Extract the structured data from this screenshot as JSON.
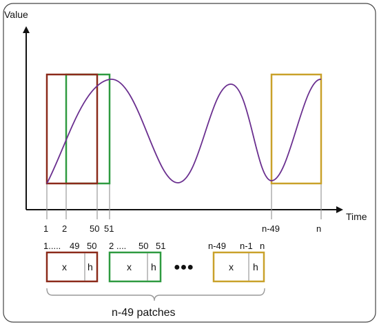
{
  "axes": {
    "y_label": "Value",
    "x_label": "Time"
  },
  "ticks": [
    "1",
    "2",
    "50",
    "51",
    "n-49",
    "n"
  ],
  "patches": [
    {
      "index_label_start": "1.....",
      "index_label_mid": "49",
      "index_label_end": "50",
      "x_label": "x",
      "h_label": "h",
      "color": "#8b2a1a"
    },
    {
      "index_label_start": "2 ....",
      "index_label_mid": "50",
      "index_label_end": "51",
      "x_label": "x",
      "h_label": "h",
      "color": "#2e9a40"
    },
    {
      "index_label_start": "n-49",
      "index_label_mid": "n-1",
      "index_label_end": "n",
      "x_label": "x",
      "h_label": "h",
      "color": "#c9a12a"
    }
  ],
  "ellipsis": "●●●",
  "brace_caption": "n-49 patches",
  "colors": {
    "curve": "#6a2f8f",
    "window_1": "#8b2a1a",
    "window_2": "#2e9a40",
    "window_n": "#c9a12a",
    "frame": "#444444",
    "guide": "#999999"
  }
}
